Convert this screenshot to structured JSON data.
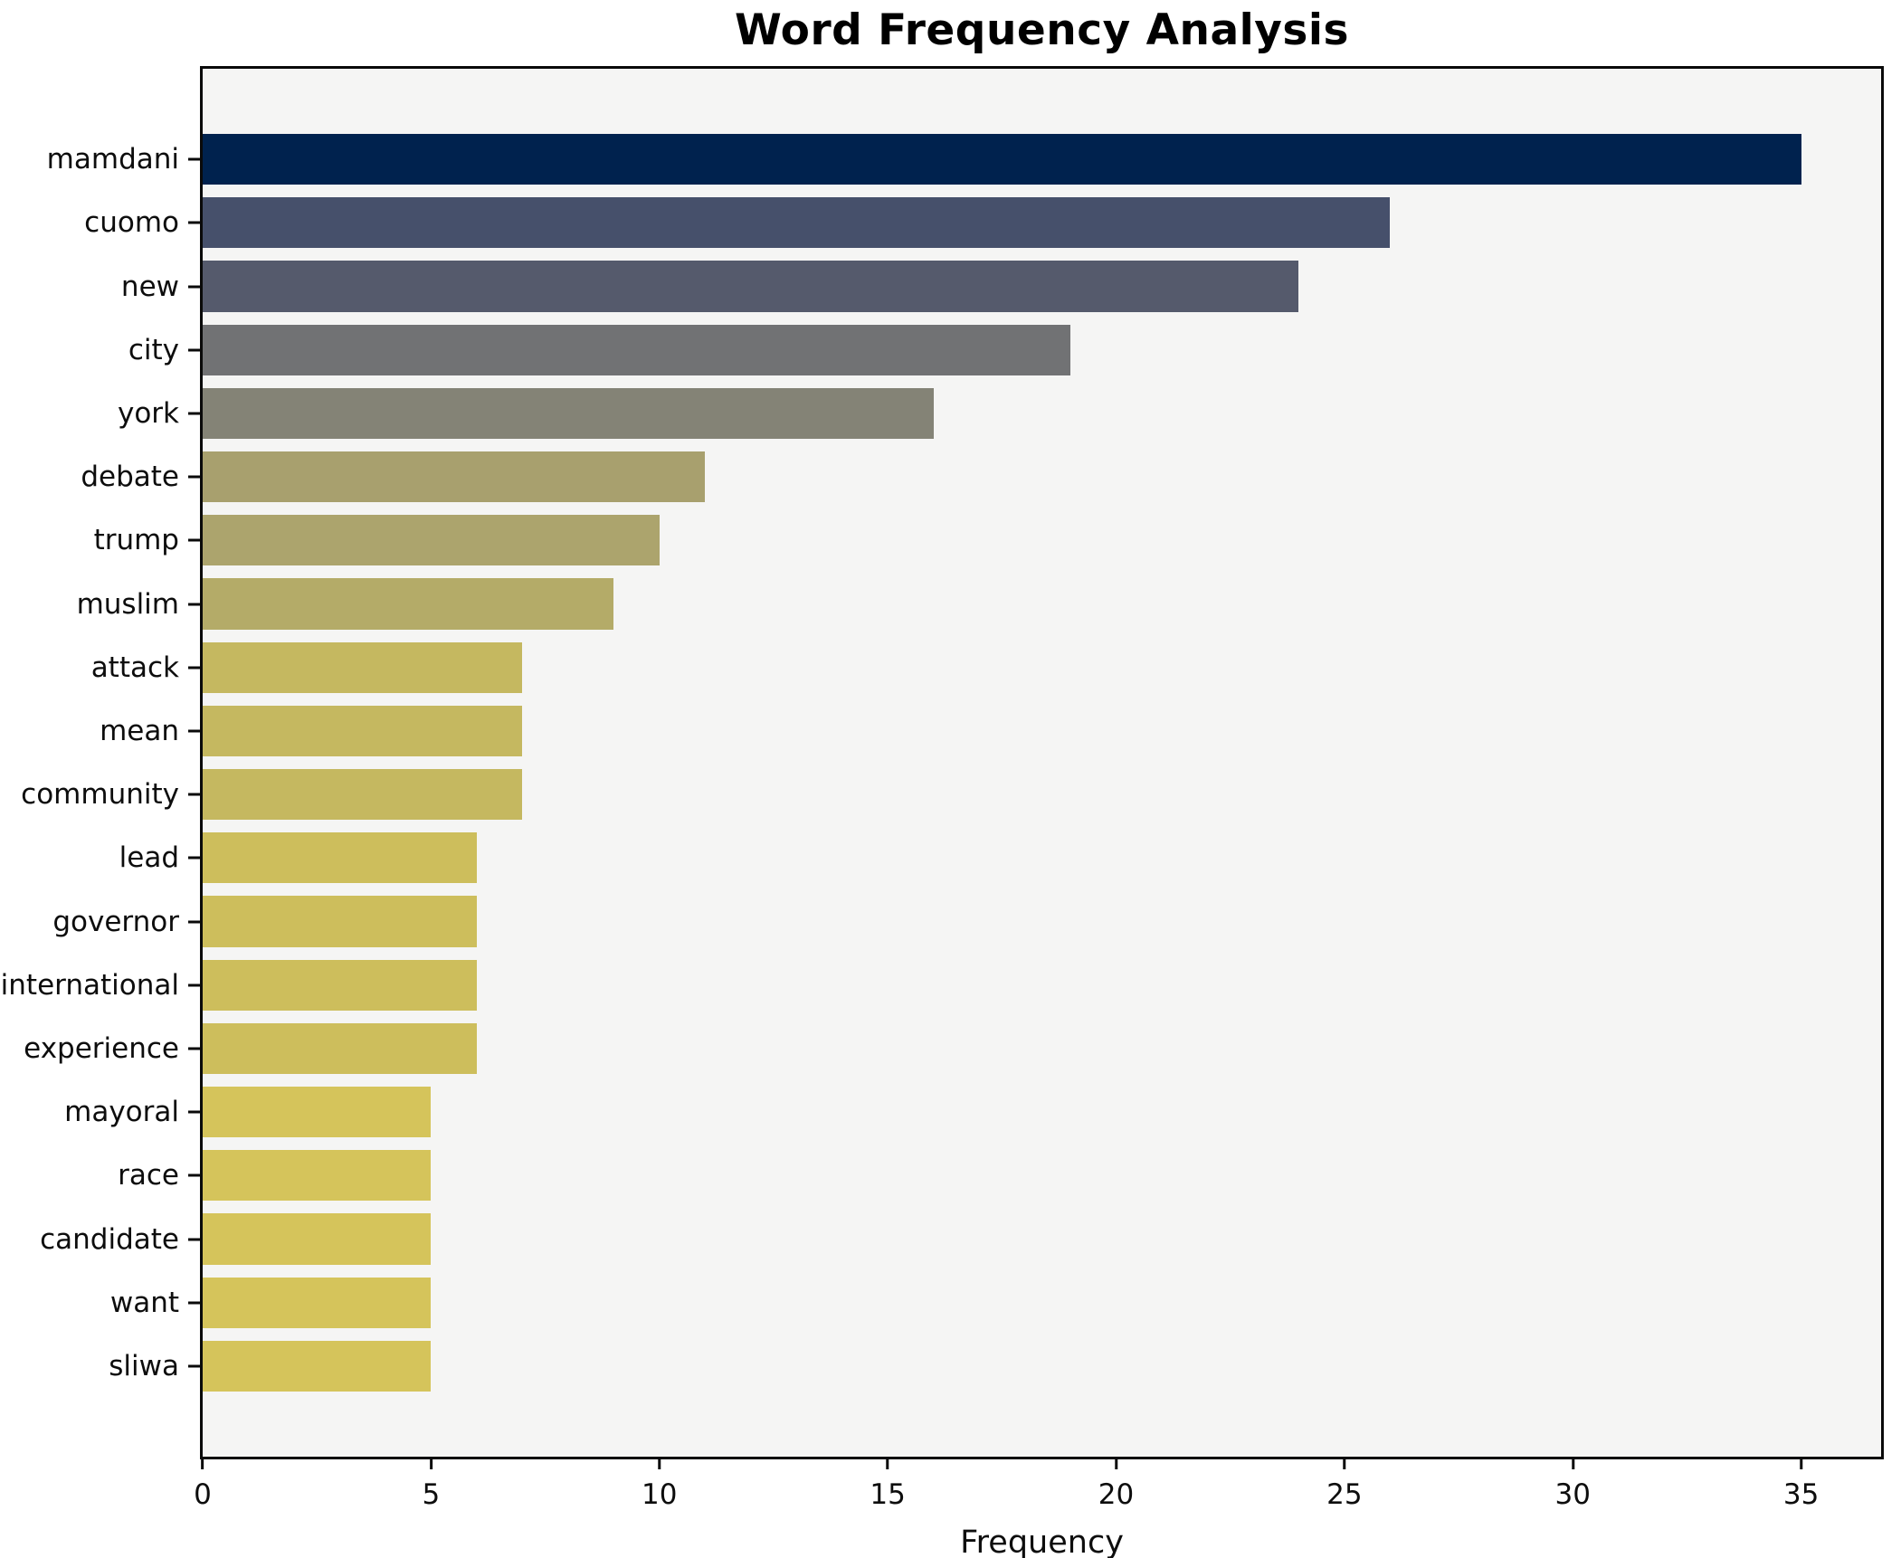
{
  "chart_data": {
    "type": "bar",
    "orientation": "horizontal",
    "title": "Word Frequency Analysis",
    "xlabel": "Frequency",
    "ylabel": "",
    "categories": [
      "mamdani",
      "cuomo",
      "new",
      "city",
      "york",
      "debate",
      "trump",
      "muslim",
      "attack",
      "mean",
      "community",
      "lead",
      "governor",
      "international",
      "experience",
      "mayoral",
      "race",
      "candidate",
      "want",
      "sliwa"
    ],
    "values": [
      35,
      26,
      24,
      19,
      16,
      11,
      10,
      9,
      7,
      7,
      7,
      6,
      6,
      6,
      6,
      5,
      5,
      5,
      5,
      5
    ],
    "bar_colors": [
      "#00224e",
      "#46506b",
      "#555a6c",
      "#717274",
      "#848376",
      "#a8a06e",
      "#aca46d",
      "#b4ab68",
      "#c5b860",
      "#c5b860",
      "#c5b860",
      "#cdbe5c",
      "#cdbe5c",
      "#cdbe5c",
      "#cdbe5c",
      "#d5c45b",
      "#d5c45b",
      "#d5c45b",
      "#d5c45b",
      "#d5c45b"
    ],
    "x_ticks": [
      0,
      5,
      10,
      15,
      20,
      25,
      30,
      35
    ],
    "xlim": [
      0,
      36.75
    ],
    "grid": false,
    "legend": false,
    "plot_background": "#f5f5f4",
    "figure_background": "#ffffff",
    "spine_color": "#0a0a0a",
    "title_color": "#000000",
    "tick_label_color": "#0d0d0d"
  }
}
